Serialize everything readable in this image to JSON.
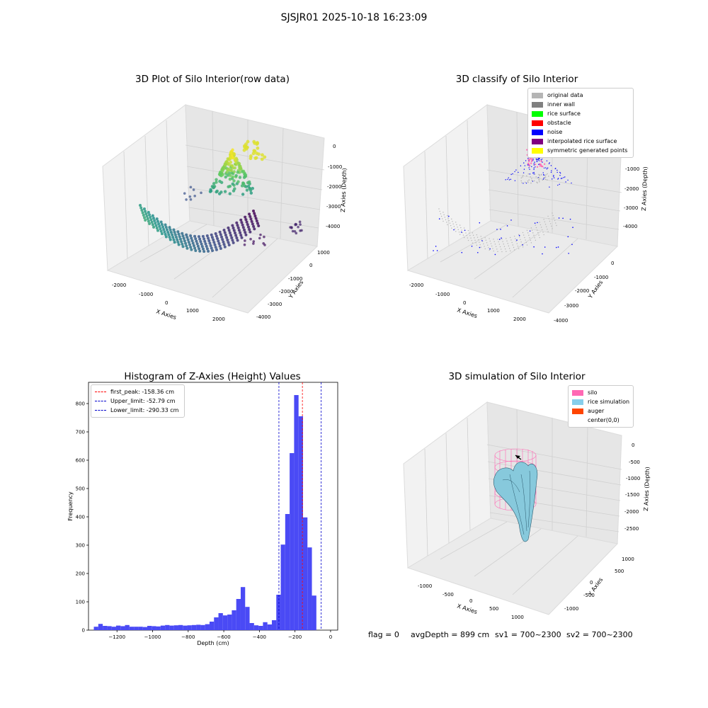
{
  "suptitle": "SJSJR01 2025-10-18 16:23:09",
  "panels": {
    "raw": {
      "title": "3D Plot of Silo Interior(row data)",
      "xlabel": "X Axies",
      "ylabel": "Y Axies",
      "zlabel": "Z Axies (Depth)",
      "xticks": [
        "-2000",
        "-1000",
        "0",
        "1000",
        "2000"
      ],
      "yticks": [
        "1000",
        "0",
        "-1000",
        "-2000",
        "-3000",
        "-4000"
      ],
      "zticks": [
        "0",
        "-1000",
        "-2000",
        "-3000",
        "-4000"
      ],
      "colormap": "viridis"
    },
    "classify": {
      "title": "3D classify of Silo Interior",
      "xlabel": "X Axies",
      "ylabel": "Y Axies",
      "zlabel": "Z Axies (Depth)",
      "xticks": [
        "-2000",
        "-1000",
        "0",
        "1000",
        "2000"
      ],
      "yticks": [
        "0",
        "-1000",
        "-2000",
        "-3000",
        "-4000"
      ],
      "zticks": [
        "-1000",
        "-2000",
        "-3000",
        "-4000"
      ],
      "legend": [
        {
          "label": "original data",
          "color": "#b5b5b5"
        },
        {
          "label": "inner wall",
          "color": "#808080"
        },
        {
          "label": "rice surface",
          "color": "#00ff00"
        },
        {
          "label": "obstacle",
          "color": "#ff0000"
        },
        {
          "label": "noise",
          "color": "#0000ff"
        },
        {
          "label": "interpolated rice surface",
          "color": "#800080"
        },
        {
          "label": "symmetric generated points",
          "color": "#ffff00"
        }
      ]
    },
    "simulation": {
      "title": "3D simulation of Silo Interior",
      "xlabel": "X Axies",
      "ylabel": "Y Axies",
      "zlabel": "Z Axies (Depth)",
      "xticks": [
        "-1000",
        "-500",
        "0",
        "500",
        "1000"
      ],
      "yticks": [
        "1000",
        "500",
        "0",
        "-500",
        "-1000"
      ],
      "zticks": [
        "0",
        "-500",
        "-1000",
        "-1500",
        "-2000",
        "-2500"
      ],
      "legend": [
        {
          "label": "silo",
          "color": "#ff69b4"
        },
        {
          "label": "rice simulation",
          "color": "#87ceeb"
        },
        {
          "label": "auger",
          "color": "#ff4500"
        },
        {
          "label": "center(0,0)",
          "color": "#ffffff"
        }
      ]
    }
  },
  "status": {
    "flag": "flag = 0",
    "avg": "avgDepth = 899 cm",
    "sv1": "sv1 = 700~2300",
    "sv2": "sv2 = 700~2300"
  },
  "chart_data": [
    {
      "type": "bar",
      "title": "Histogram of Z-Axies (Height) Values",
      "xlabel": "Depth (cm)",
      "ylabel": "Frequency",
      "bar_color": "#4a4af5",
      "bin_start": -1330,
      "bin_width": 25,
      "values": [
        12,
        22,
        15,
        14,
        12,
        16,
        14,
        18,
        12,
        12,
        12,
        11,
        15,
        14,
        13,
        16,
        18,
        16,
        17,
        18,
        16,
        17,
        18,
        19,
        18,
        21,
        30,
        45,
        60,
        52,
        55,
        70,
        110,
        152,
        82,
        25,
        17,
        15,
        28,
        20,
        35,
        125,
        302,
        410,
        625,
        830,
        755,
        398,
        292,
        122
      ],
      "xlim": [
        -1360,
        40
      ],
      "ylim": [
        0,
        875
      ],
      "xticks": [
        -1200,
        -1000,
        -800,
        -600,
        -400,
        -200,
        0
      ],
      "yticks": [
        0,
        100,
        200,
        300,
        400,
        500,
        600,
        700,
        800
      ],
      "vlines": [
        {
          "x": -158.36,
          "color": "#ff0000",
          "label": "first_peak: -158.36 cm"
        },
        {
          "x": -52.79,
          "color": "#0000cc",
          "label": "Upper_limit: -52.79 cm"
        },
        {
          "x": -290.33,
          "color": "#0000cc",
          "label": "Lower_limit: -290.33 cm"
        }
      ],
      "legend_position": "upper-left"
    }
  ]
}
